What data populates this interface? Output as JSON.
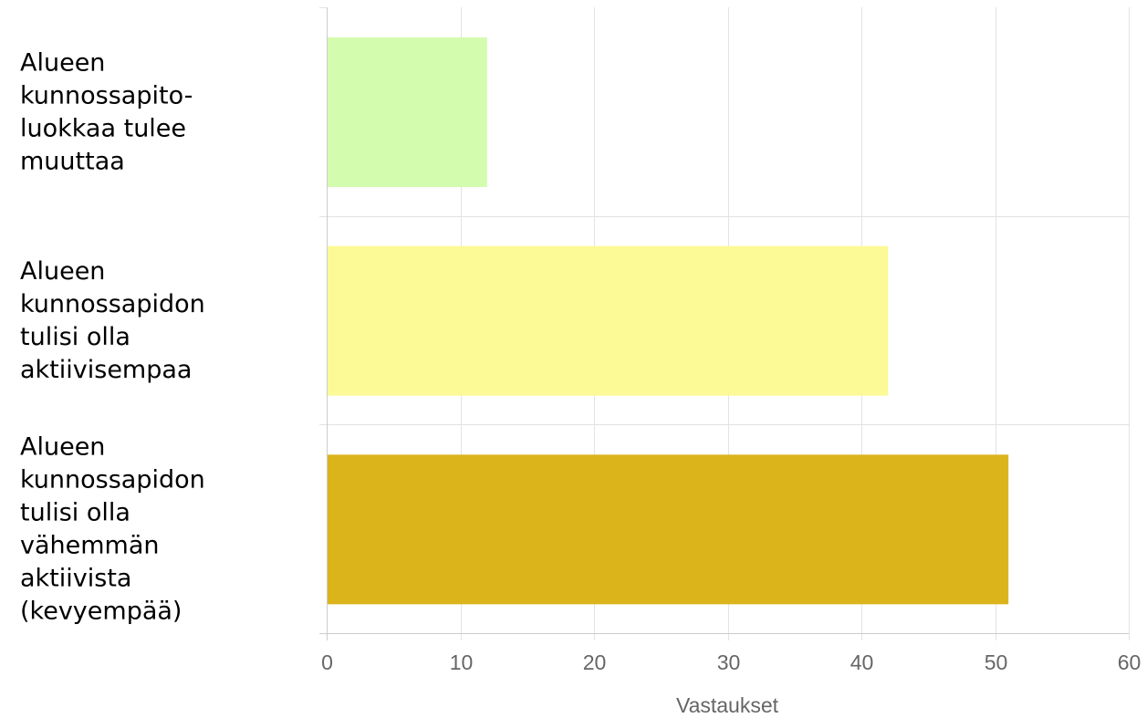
{
  "chart_data": {
    "type": "bar",
    "orientation": "horizontal",
    "categories": [
      "Alueen kunnossapito-luokkaa tulee muuttaa",
      "Alueen kunnossapidon tulisi olla aktiivisempaa",
      "Alueen kunnossapidon tulisi olla vähemmän aktiivista (kevyempää)"
    ],
    "category_label_lines": [
      [
        "Alueen",
        "kunnossapito-",
        "luokkaa tulee",
        "muuttaa"
      ],
      [
        "Alueen",
        "kunnossapidon",
        "tulisi olla",
        "aktiivisempaa"
      ],
      [
        "Alueen",
        "kunnossapidon",
        "tulisi olla",
        "vähemmän",
        "aktiivista",
        "(kevyempää)"
      ]
    ],
    "values": [
      12,
      42,
      51
    ],
    "colors": [
      "#d4fcae",
      "#fcfa96",
      "#dbb41b"
    ],
    "xlabel": "Vastaukset",
    "xlim": [
      0,
      60
    ],
    "xticks": [
      0,
      10,
      20,
      30,
      40,
      50,
      60
    ],
    "grid": true,
    "legend": "none"
  }
}
